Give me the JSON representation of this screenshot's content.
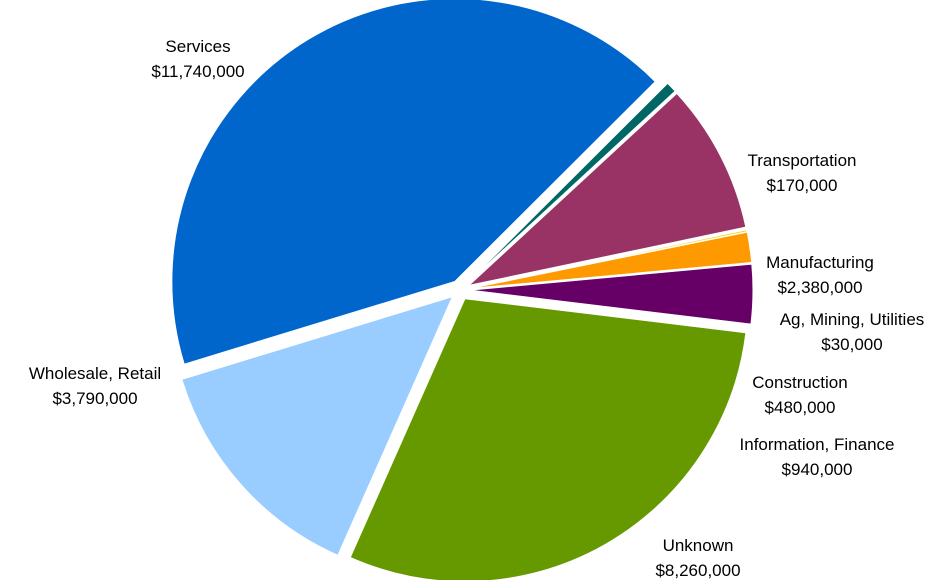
{
  "chart_data": {
    "type": "pie",
    "title": "",
    "legend": "none",
    "slices": [
      {
        "name": "Services",
        "value_label": "$11,740,000",
        "value": 11740000,
        "color": "#0066CC"
      },
      {
        "name": "Transportation",
        "value_label": "$170,000",
        "value": 170000,
        "color": "#006666"
      },
      {
        "name": "Manufacturing",
        "value_label": "$2,380,000",
        "value": 2380000,
        "color": "#993366"
      },
      {
        "name": "Ag, Mining, Utilities",
        "value_label": "$30,000",
        "value": 30000,
        "color": "#FFCC00"
      },
      {
        "name": "Construction",
        "value_label": "$480,000",
        "value": 480000,
        "color": "#FF9900"
      },
      {
        "name": "Information, Finance",
        "value_label": "$940,000",
        "value": 940000,
        "color": "#660066"
      },
      {
        "name": "Unknown",
        "value_label": "$8,260,000",
        "value": 8260000,
        "color": "#669900"
      },
      {
        "name": "Wholesale, Retail",
        "value_label": "$3,790,000",
        "value": 3790000,
        "color": "#99CCFF"
      }
    ]
  }
}
